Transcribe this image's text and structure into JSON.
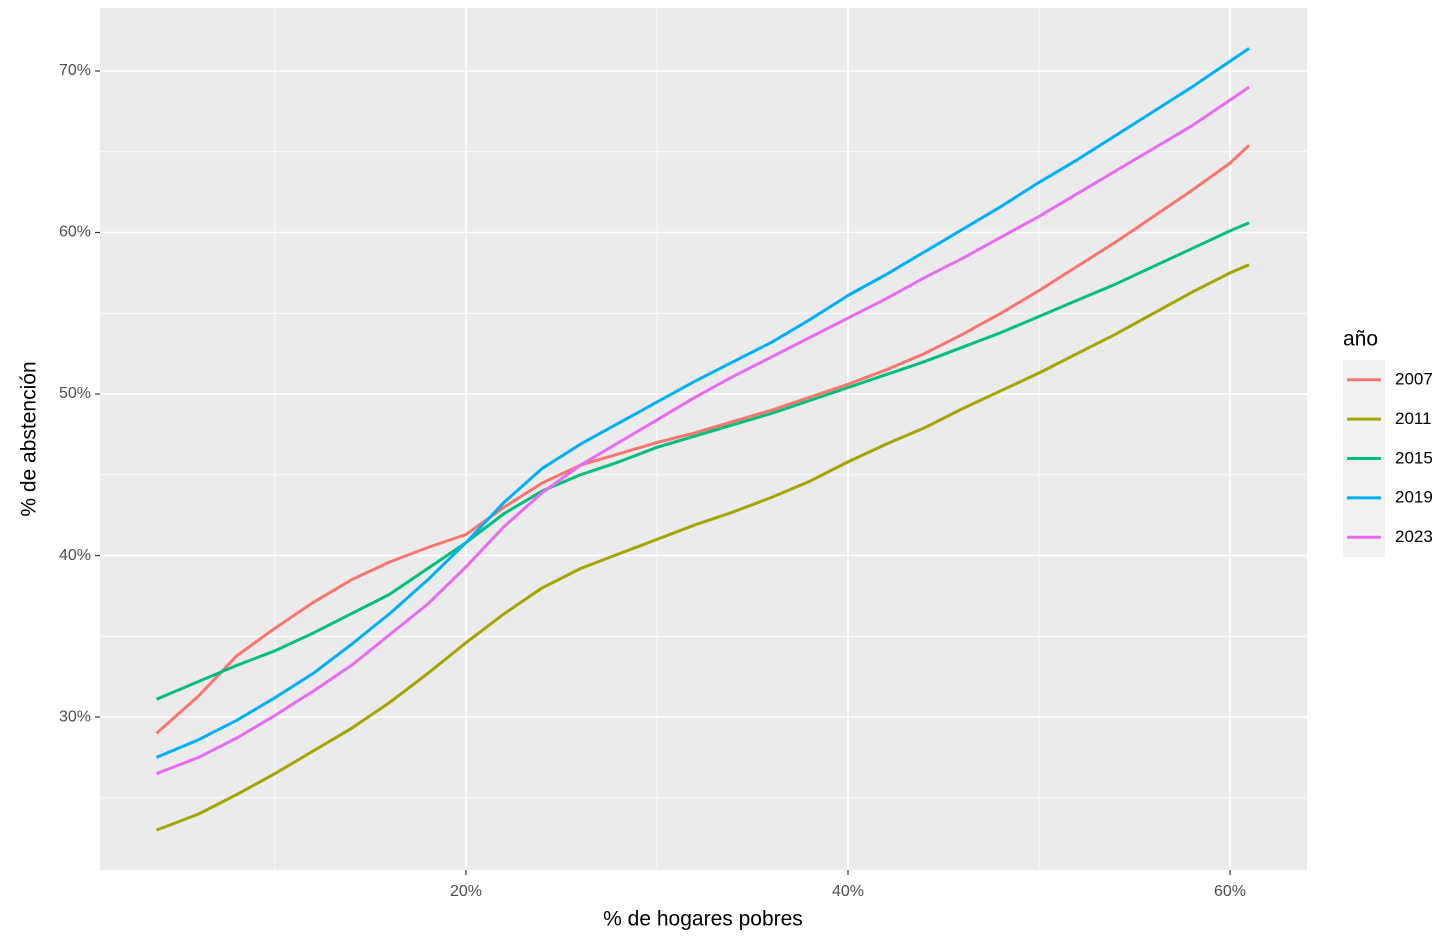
{
  "chart_data": {
    "type": "line",
    "x_label": "% de hogares pobres",
    "y_label": "% de abstención",
    "legend_title": "año",
    "legend_position": "right",
    "grid": true,
    "xlim": [
      0.84,
      64.03
    ],
    "ylim": [
      20.53,
      73.9
    ],
    "xticks": [
      {
        "value": 20,
        "label": "20%"
      },
      {
        "value": 40,
        "label": "40%"
      },
      {
        "value": 60,
        "label": "60%"
      }
    ],
    "yticks": [
      {
        "value": 30,
        "label": "30%"
      },
      {
        "value": 40,
        "label": "40%"
      },
      {
        "value": 50,
        "label": "50%"
      },
      {
        "value": 60,
        "label": "60%"
      },
      {
        "value": 70,
        "label": "70%"
      }
    ],
    "x": [
      3.8,
      6,
      8,
      10,
      12,
      14,
      16,
      18,
      20,
      22,
      24,
      26,
      28,
      30,
      32,
      34,
      36,
      38,
      40,
      42,
      44,
      46,
      48,
      50,
      52,
      54,
      56,
      58,
      60,
      61
    ],
    "series": [
      {
        "name": "2007",
        "color": "#f8766d",
        "values": [
          29.0,
          31.3,
          33.8,
          35.5,
          37.1,
          38.5,
          39.6,
          40.5,
          41.3,
          43.0,
          44.5,
          45.6,
          46.3,
          47.0,
          47.6,
          48.3,
          49.0,
          49.8,
          50.6,
          51.5,
          52.5,
          53.7,
          55.0,
          56.4,
          57.9,
          59.4,
          61.0,
          62.6,
          64.3,
          65.4
        ]
      },
      {
        "name": "2011",
        "color": "#a3a500",
        "values": [
          23.0,
          24.0,
          25.2,
          26.5,
          27.9,
          29.3,
          30.9,
          32.7,
          34.6,
          36.4,
          38.0,
          39.2,
          40.1,
          41.0,
          41.9,
          42.7,
          43.6,
          44.6,
          45.8,
          46.9,
          47.9,
          49.1,
          50.2,
          51.3,
          52.5,
          53.7,
          55.0,
          56.3,
          57.5,
          58.0
        ]
      },
      {
        "name": "2015",
        "color": "#00bf7d",
        "values": [
          31.1,
          32.2,
          33.2,
          34.1,
          35.2,
          36.4,
          37.6,
          39.2,
          40.8,
          42.6,
          44.0,
          45.0,
          45.8,
          46.7,
          47.4,
          48.1,
          48.8,
          49.6,
          50.4,
          51.2,
          52.0,
          52.9,
          53.8,
          54.8,
          55.8,
          56.8,
          57.9,
          59.0,
          60.1,
          60.6
        ]
      },
      {
        "name": "2019",
        "color": "#00b0f6",
        "values": [
          27.5,
          28.6,
          29.8,
          31.2,
          32.7,
          34.5,
          36.4,
          38.5,
          40.8,
          43.3,
          45.4,
          46.9,
          48.2,
          49.5,
          50.8,
          52.0,
          53.2,
          54.6,
          56.1,
          57.4,
          58.8,
          60.2,
          61.6,
          63.1,
          64.5,
          66.0,
          67.5,
          69.0,
          70.6,
          71.4
        ]
      },
      {
        "name": "2023",
        "color": "#e76bf3",
        "values": [
          26.5,
          27.5,
          28.7,
          30.1,
          31.6,
          33.2,
          35.1,
          37.0,
          39.3,
          41.8,
          43.9,
          45.6,
          47.0,
          48.4,
          49.8,
          51.1,
          52.3,
          53.5,
          54.7,
          55.9,
          57.2,
          58.4,
          59.7,
          61.0,
          62.4,
          63.8,
          65.2,
          66.6,
          68.2,
          69.0
        ]
      }
    ]
  }
}
